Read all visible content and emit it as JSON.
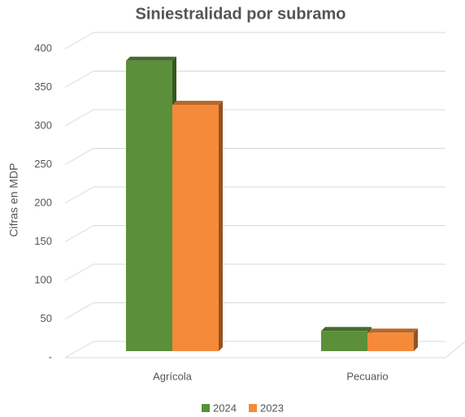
{
  "chart_data": {
    "type": "bar",
    "title": "Siniestralidad por subramo",
    "y_label": "Cifras en MDP",
    "categories": [
      "Agrícola",
      "Pecuario"
    ],
    "series": [
      {
        "name": "2024",
        "color": "#5b8f3a",
        "values": [
          376,
          26
        ]
      },
      {
        "name": "2023",
        "color": "#f58a3a",
        "values": [
          319,
          24
        ]
      }
    ],
    "ylim": [
      0,
      400
    ],
    "yticks": [
      {
        "value": 0,
        "label": "-"
      },
      50,
      100,
      150,
      200,
      250,
      300,
      350,
      400
    ],
    "grid": true,
    "legend": "bottom"
  }
}
